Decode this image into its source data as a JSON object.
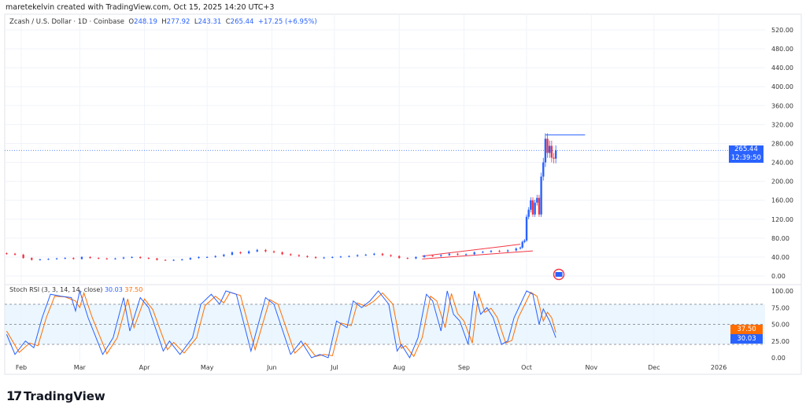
{
  "credit": "maretekelvin created with TradingView.com, Oct 15, 2025 14:20 UTC+3",
  "legend": {
    "symbol": "Zcash / U.S. Dollar · 1D · Coinbase",
    "o_label": "O",
    "o": "248.19",
    "h_label": "H",
    "h": "277.92",
    "l_label": "L",
    "l": "243.31",
    "c_label": "C",
    "c": "265.44",
    "change": "+17.25 (+6.95%)"
  },
  "price_label": {
    "price": "265.44",
    "countdown": "12:39:50"
  },
  "rsi_legend": {
    "name": "Stoch RSI (3, 3, 14, 14, close)",
    "k": "30.03",
    "d": "37.50"
  },
  "logo": "TradingView",
  "colors": {
    "up": "#2962ff",
    "down": "#f23645",
    "k": "#2962ff",
    "d": "#ff6d00",
    "band": "#e3f2fd"
  },
  "chart_data": [
    {
      "type": "candlestick",
      "ylim": [
        0,
        520
      ],
      "yticks": [
        "0.00",
        "40.00",
        "80.00",
        "120.00",
        "160.00",
        "200.00",
        "240.00",
        "280.00",
        "320.00",
        "360.00",
        "400.00",
        "440.00",
        "480.00",
        "520.00"
      ],
      "xticks": [
        "Feb",
        "Mar",
        "Apr",
        "May",
        "Jun",
        "Jul",
        "Aug",
        "Sep",
        "Oct",
        "Nov",
        "Dec",
        "2026"
      ],
      "closes": [
        [
          "2025-01-25",
          47
        ],
        [
          "2025-01-29",
          45
        ],
        [
          "2025-02-02",
          38
        ],
        [
          "2025-02-06",
          34
        ],
        [
          "2025-02-10",
          35
        ],
        [
          "2025-02-14",
          36
        ],
        [
          "2025-02-18",
          37
        ],
        [
          "2025-02-22",
          38
        ],
        [
          "2025-02-26",
          36
        ],
        [
          "2025-03-02",
          40
        ],
        [
          "2025-03-06",
          38
        ],
        [
          "2025-03-10",
          37
        ],
        [
          "2025-03-14",
          36
        ],
        [
          "2025-03-18",
          37
        ],
        [
          "2025-03-22",
          39
        ],
        [
          "2025-03-26",
          40
        ],
        [
          "2025-03-30",
          38
        ],
        [
          "2025-04-03",
          37
        ],
        [
          "2025-04-07",
          34
        ],
        [
          "2025-04-11",
          33
        ],
        [
          "2025-04-15",
          34
        ],
        [
          "2025-04-19",
          35
        ],
        [
          "2025-04-23",
          38
        ],
        [
          "2025-04-27",
          40
        ],
        [
          "2025-05-01",
          40
        ],
        [
          "2025-05-05",
          42
        ],
        [
          "2025-05-09",
          45
        ],
        [
          "2025-05-13",
          50
        ],
        [
          "2025-05-17",
          48
        ],
        [
          "2025-05-21",
          52
        ],
        [
          "2025-05-25",
          55
        ],
        [
          "2025-05-29",
          52
        ],
        [
          "2025-06-02",
          50
        ],
        [
          "2025-06-06",
          46
        ],
        [
          "2025-06-10",
          44
        ],
        [
          "2025-06-14",
          42
        ],
        [
          "2025-06-18",
          40
        ],
        [
          "2025-06-22",
          38
        ],
        [
          "2025-06-26",
          39
        ],
        [
          "2025-06-30",
          40
        ],
        [
          "2025-07-04",
          41
        ],
        [
          "2025-07-08",
          42
        ],
        [
          "2025-07-12",
          44
        ],
        [
          "2025-07-16",
          45
        ],
        [
          "2025-07-20",
          47
        ],
        [
          "2025-07-24",
          44
        ],
        [
          "2025-07-28",
          42
        ],
        [
          "2025-08-01",
          38
        ],
        [
          "2025-08-05",
          37
        ],
        [
          "2025-08-09",
          40
        ],
        [
          "2025-08-13",
          43
        ],
        [
          "2025-08-17",
          42
        ],
        [
          "2025-08-21",
          44
        ],
        [
          "2025-08-25",
          47
        ],
        [
          "2025-08-29",
          45
        ],
        [
          "2025-09-02",
          46
        ],
        [
          "2025-09-06",
          50
        ],
        [
          "2025-09-10",
          51
        ],
        [
          "2025-09-14",
          53
        ],
        [
          "2025-09-18",
          52
        ],
        [
          "2025-09-22",
          54
        ],
        [
          "2025-09-26",
          58
        ],
        [
          "2025-09-28",
          60
        ],
        [
          "2025-09-29",
          72
        ],
        [
          "2025-09-30",
          75
        ],
        [
          "2025-10-01",
          125
        ],
        [
          "2025-10-02",
          140
        ],
        [
          "2025-10-03",
          160
        ],
        [
          "2025-10-04",
          130
        ],
        [
          "2025-10-05",
          155
        ],
        [
          "2025-10-06",
          165
        ],
        [
          "2025-10-07",
          130
        ],
        [
          "2025-10-08",
          210
        ],
        [
          "2025-10-09",
          240
        ],
        [
          "2025-10-10",
          290
        ],
        [
          "2025-10-11",
          260
        ],
        [
          "2025-10-12",
          275
        ],
        [
          "2025-10-13",
          250
        ],
        [
          "2025-10-14",
          248
        ],
        [
          "2025-10-15",
          265.44
        ]
      ],
      "last_price": 265.44,
      "resistance": {
        "price": 298,
        "from": "2025-10-10",
        "to": "2025-10-29"
      },
      "channel": [
        {
          "from": [
            "2025-08-12",
            42
          ],
          "to": [
            "2025-09-28",
            67
          ]
        },
        {
          "from": [
            "2025-08-12",
            36
          ],
          "to": [
            "2025-10-04",
            53
          ]
        }
      ]
    },
    {
      "type": "line",
      "title": "Stoch RSI (3, 3, 14, 14, close)",
      "ylim": [
        0,
        100
      ],
      "yticks": [
        "0.00",
        "25.00",
        "50.00",
        "75.00",
        "100.00"
      ],
      "bands": [
        20,
        50,
        80
      ],
      "series": [
        {
          "name": "K",
          "values": [
            [
              "2025-01-25",
              35
            ],
            [
              "2025-01-29",
              5
            ],
            [
              "2025-02-03",
              25
            ],
            [
              "2025-02-07",
              15
            ],
            [
              "2025-02-11",
              60
            ],
            [
              "2025-02-15",
              95
            ],
            [
              "2025-02-20",
              92
            ],
            [
              "2025-02-25",
              90
            ],
            [
              "2025-02-27",
              70
            ],
            [
              "2025-03-01",
              100
            ],
            [
              "2025-03-05",
              60
            ],
            [
              "2025-03-12",
              5
            ],
            [
              "2025-03-17",
              30
            ],
            [
              "2025-03-22",
              90
            ],
            [
              "2025-03-25",
              40
            ],
            [
              "2025-03-30",
              90
            ],
            [
              "2025-04-03",
              75
            ],
            [
              "2025-04-10",
              10
            ],
            [
              "2025-04-13",
              25
            ],
            [
              "2025-04-18",
              5
            ],
            [
              "2025-04-24",
              30
            ],
            [
              "2025-04-28",
              80
            ],
            [
              "2025-05-03",
              95
            ],
            [
              "2025-05-07",
              80
            ],
            [
              "2025-05-10",
              100
            ],
            [
              "2025-05-15",
              95
            ],
            [
              "2025-05-22",
              10
            ],
            [
              "2025-05-29",
              90
            ],
            [
              "2025-06-02",
              80
            ],
            [
              "2025-06-10",
              5
            ],
            [
              "2025-06-15",
              25
            ],
            [
              "2025-06-20",
              0
            ],
            [
              "2025-06-24",
              5
            ],
            [
              "2025-06-28",
              0
            ],
            [
              "2025-07-02",
              55
            ],
            [
              "2025-07-07",
              45
            ],
            [
              "2025-07-10",
              85
            ],
            [
              "2025-07-14",
              75
            ],
            [
              "2025-07-18",
              85
            ],
            [
              "2025-07-22",
              100
            ],
            [
              "2025-07-27",
              80
            ],
            [
              "2025-07-31",
              10
            ],
            [
              "2025-08-02",
              20
            ],
            [
              "2025-08-06",
              0
            ],
            [
              "2025-08-10",
              30
            ],
            [
              "2025-08-14",
              95
            ],
            [
              "2025-08-17",
              85
            ],
            [
              "2025-08-21",
              40
            ],
            [
              "2025-08-24",
              100
            ],
            [
              "2025-08-27",
              65
            ],
            [
              "2025-08-30",
              55
            ],
            [
              "2025-09-03",
              20
            ],
            [
              "2025-09-06",
              100
            ],
            [
              "2025-09-09",
              65
            ],
            [
              "2025-09-12",
              75
            ],
            [
              "2025-09-15",
              60
            ],
            [
              "2025-09-19",
              20
            ],
            [
              "2025-09-22",
              25
            ],
            [
              "2025-09-25",
              60
            ],
            [
              "2025-10-01",
              100
            ],
            [
              "2025-10-04",
              95
            ],
            [
              "2025-10-07",
              50
            ],
            [
              "2025-10-09",
              73
            ],
            [
              "2025-10-12",
              55
            ],
            [
              "2025-10-15",
              30.03
            ]
          ]
        },
        {
          "name": "D",
          "values": [
            [
              "2025-01-25",
              40
            ],
            [
              "2025-01-31",
              8
            ],
            [
              "2025-02-05",
              22
            ],
            [
              "2025-02-09",
              18
            ],
            [
              "2025-02-13",
              60
            ],
            [
              "2025-02-17",
              92
            ],
            [
              "2025-02-22",
              91
            ],
            [
              "2025-02-27",
              85
            ],
            [
              "2025-03-01",
              75
            ],
            [
              "2025-03-03",
              97
            ],
            [
              "2025-03-07",
              60
            ],
            [
              "2025-03-14",
              6
            ],
            [
              "2025-03-19",
              30
            ],
            [
              "2025-03-24",
              88
            ],
            [
              "2025-03-27",
              45
            ],
            [
              "2025-04-01",
              88
            ],
            [
              "2025-04-05",
              72
            ],
            [
              "2025-04-12",
              12
            ],
            [
              "2025-04-15",
              23
            ],
            [
              "2025-04-20",
              7
            ],
            [
              "2025-04-26",
              30
            ],
            [
              "2025-04-30",
              78
            ],
            [
              "2025-05-05",
              92
            ],
            [
              "2025-05-09",
              82
            ],
            [
              "2025-05-12",
              98
            ],
            [
              "2025-05-17",
              93
            ],
            [
              "2025-05-24",
              12
            ],
            [
              "2025-05-31",
              87
            ],
            [
              "2025-06-04",
              80
            ],
            [
              "2025-06-12",
              7
            ],
            [
              "2025-06-17",
              22
            ],
            [
              "2025-06-22",
              2
            ],
            [
              "2025-06-26",
              5
            ],
            [
              "2025-06-30",
              3
            ],
            [
              "2025-07-04",
              52
            ],
            [
              "2025-07-09",
              48
            ],
            [
              "2025-07-12",
              82
            ],
            [
              "2025-07-16",
              77
            ],
            [
              "2025-07-20",
              85
            ],
            [
              "2025-07-24",
              97
            ],
            [
              "2025-07-29",
              80
            ],
            [
              "2025-08-02",
              14
            ],
            [
              "2025-08-04",
              18
            ],
            [
              "2025-08-08",
              2
            ],
            [
              "2025-08-12",
              30
            ],
            [
              "2025-08-16",
              92
            ],
            [
              "2025-08-19",
              85
            ],
            [
              "2025-08-23",
              45
            ],
            [
              "2025-08-26",
              96
            ],
            [
              "2025-08-29",
              66
            ],
            [
              "2025-09-01",
              55
            ],
            [
              "2025-09-05",
              22
            ],
            [
              "2025-09-08",
              96
            ],
            [
              "2025-09-11",
              68
            ],
            [
              "2025-09-14",
              74
            ],
            [
              "2025-09-17",
              60
            ],
            [
              "2025-09-21",
              22
            ],
            [
              "2025-09-24",
              26
            ],
            [
              "2025-09-27",
              60
            ],
            [
              "2025-10-03",
              98
            ],
            [
              "2025-10-06",
              92
            ],
            [
              "2025-10-09",
              55
            ],
            [
              "2025-10-11",
              68
            ],
            [
              "2025-10-13",
              60
            ],
            [
              "2025-10-15",
              37.5
            ]
          ]
        }
      ]
    }
  ]
}
